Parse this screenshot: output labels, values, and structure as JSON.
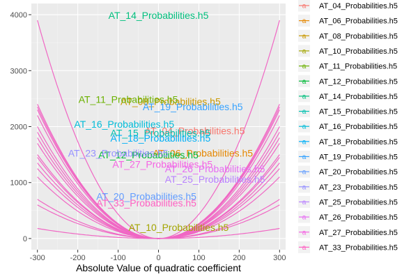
{
  "chart_data": {
    "type": "line",
    "xlabel": "Absolute Value of quadratic coefficient",
    "ylabel": "",
    "xlim": [
      -315,
      315
    ],
    "ylim": [
      -200,
      4200
    ],
    "x_ticks": [
      -300,
      -200,
      -100,
      0,
      100,
      200,
      300
    ],
    "x_tick_labels": [
      "-300",
      "-200",
      "-100",
      "0",
      "100",
      "200",
      "300"
    ],
    "y_ticks": [
      0,
      1000,
      2000,
      3000,
      4000
    ],
    "y_tick_labels": [
      "0",
      "1000",
      "2000",
      "3000",
      "4000"
    ],
    "x_range": [
      -300,
      300
    ],
    "grid": true,
    "legend_position": "right",
    "line_color": "#F067C4",
    "series": [
      {
        "name": "AT_04_Probabilities.h5",
        "color": "#F8766D",
        "y_at_300": 2300,
        "label_x": 90,
        "label_y": 1910
      },
      {
        "name": "AT_06_Probabilities.h5",
        "color": "#E58700",
        "y_at_300": 1700,
        "label_x": 110,
        "label_y": 1510
      },
      {
        "name": "AT_08_Probabilities.h5",
        "color": "#C99800",
        "y_at_300": 2200,
        "label_x": 30,
        "label_y": 2430
      },
      {
        "name": "AT_10_Probabilities.h5",
        "color": "#A3A500",
        "y_at_300": 180,
        "label_x": 50,
        "label_y": 180
      },
      {
        "name": "AT_11_Probabilities.h5",
        "color": "#6BB100",
        "y_at_300": 2350,
        "label_x": -75,
        "label_y": 2470
      },
      {
        "name": "AT_12_Probabilities.h5",
        "color": "#00BA38",
        "y_at_300": 1500,
        "label_x": -25,
        "label_y": 1480
      },
      {
        "name": "AT_14_Probabilities.h5",
        "color": "#00BF7D",
        "y_at_300": 3900,
        "label_x": 0,
        "label_y": 3970
      },
      {
        "name": "AT_15_Probabilities.h5",
        "color": "#00C0AF",
        "y_at_300": 1900,
        "label_x": 5,
        "label_y": 1870
      },
      {
        "name": "AT_16_Probabilities.h5",
        "color": "#00BCD8",
        "y_at_300": 2000,
        "label_x": -85,
        "label_y": 2030
      },
      {
        "name": "AT_18_Probabilities.h5",
        "color": "#00B0F6",
        "y_at_300": 1800,
        "label_x": 5,
        "label_y": 1780
      },
      {
        "name": "AT_19_Probabilities.h5",
        "color": "#35A2FF",
        "y_at_300": 2400,
        "label_x": 85,
        "label_y": 2340
      },
      {
        "name": "AT_20_Probabilities.h5",
        "color": "#619CFF",
        "y_at_300": 700,
        "label_x": -30,
        "label_y": 740
      },
      {
        "name": "AT_23_Probabilities.h5",
        "color": "#9590FF",
        "y_at_300": 1450,
        "label_x": -100,
        "label_y": 1510
      },
      {
        "name": "AT_25_Probabilities.h5",
        "color": "#B983FF",
        "y_at_300": 1100,
        "label_x": 140,
        "label_y": 1040
      },
      {
        "name": "AT_26_Probabilities.h5",
        "color": "#E76BF3",
        "y_at_300": 1250,
        "label_x": 140,
        "label_y": 1230
      },
      {
        "name": "AT_27_Probabilities.h5",
        "color": "#F564E3",
        "y_at_300": 1350,
        "label_x": 10,
        "label_y": 1310
      },
      {
        "name": "AT_33_Probabilities.h5",
        "color": "#FF61C3",
        "y_at_300": 600,
        "label_x": -30,
        "label_y": 620
      }
    ]
  }
}
